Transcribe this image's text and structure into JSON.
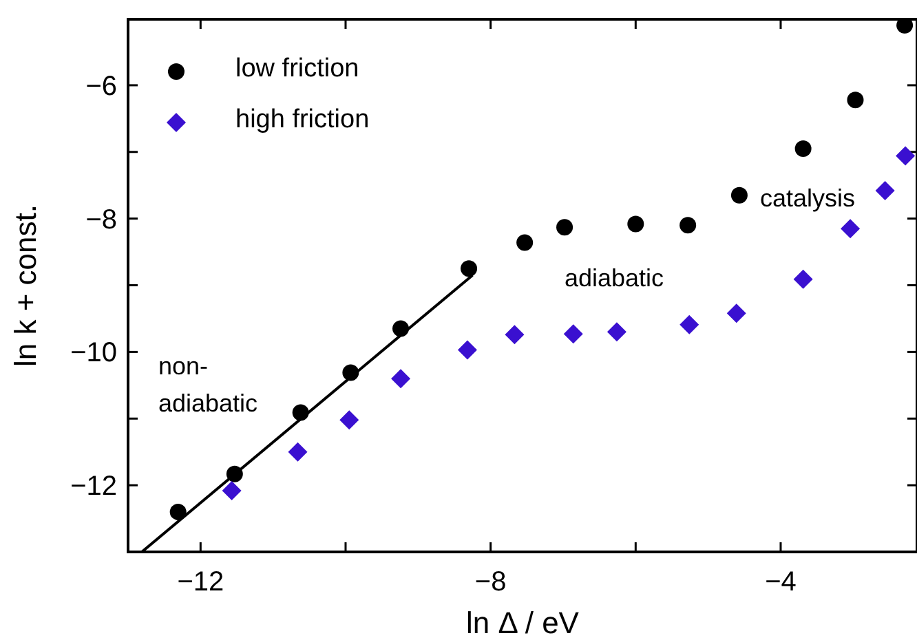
{
  "chart_data": {
    "type": "scatter",
    "xlabel": "ln Δ  / eV",
    "ylabel": "ln k + const.",
    "xlim": [
      -13,
      -2.12
    ],
    "ylim": [
      -13,
      -5.01
    ],
    "xticks": [
      -12,
      {
        "value": -10,
        "label": null
      },
      -8,
      {
        "value": -6,
        "label": null
      },
      -4
    ],
    "yticks": [
      {
        "value": -13,
        "label": null
      },
      -12,
      {
        "value": -11,
        "label": null
      },
      -10,
      {
        "value": -9,
        "label": null
      },
      -8,
      {
        "value": -7,
        "label": null
      },
      -6
    ],
    "grid": false,
    "legend": "top left",
    "annotations": [
      "non-\nadiabatic",
      "adiabatic",
      "catalysis"
    ],
    "series": [
      {
        "name": "low friction",
        "marker": "circle",
        "color": "#000000",
        "x": [
          -12.31,
          -11.53,
          -10.62,
          -9.93,
          -9.24,
          -8.3,
          -7.53,
          -6.98,
          -6.0,
          -5.28,
          -4.57,
          -3.69,
          -2.97,
          -2.29
        ],
        "values": [
          -12.4,
          -11.83,
          -10.91,
          -10.31,
          -9.65,
          -8.75,
          -8.36,
          -8.13,
          -8.08,
          -8.1,
          -7.65,
          -6.95,
          -6.22,
          -5.1
        ]
      },
      {
        "name": "high friction",
        "marker": "diamond",
        "color": "#3a10d0",
        "x": [
          -11.57,
          -10.66,
          -9.95,
          -9.24,
          -8.32,
          -7.67,
          -6.86,
          -6.26,
          -5.26,
          -4.61,
          -3.69,
          -3.04,
          -2.56,
          -2.28
        ],
        "values": [
          -12.08,
          -11.5,
          -11.02,
          -10.4,
          -9.97,
          -9.74,
          -9.73,
          -9.7,
          -9.59,
          -9.42,
          -8.91,
          -8.15,
          -7.58,
          -7.06
        ]
      },
      {
        "type": "line",
        "marker": "none",
        "color": "#000000",
        "x": [
          -12.81,
          -8.25
        ],
        "values": [
          -13,
          -8.85
        ]
      }
    ]
  }
}
